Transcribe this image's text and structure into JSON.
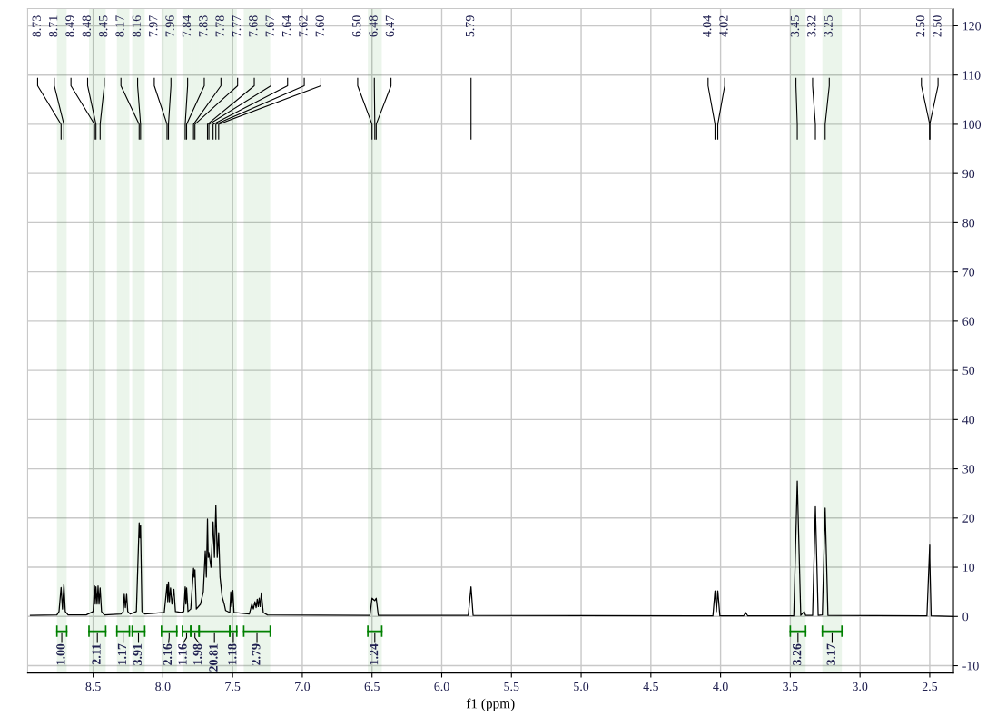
{
  "chart_data": {
    "type": "line",
    "xlabel": "f1 (ppm)",
    "xlim": [
      8.97,
      2.33
    ],
    "ylim": [
      -11.5,
      123.5
    ],
    "xticks": [
      8.5,
      {
        "value": 8,
        "label": "8.0"
      },
      7.5,
      {
        "value": 7,
        "label": "7.0"
      },
      6.5,
      {
        "value": 6,
        "label": "6.0"
      },
      5.5,
      {
        "value": 5,
        "label": "5.0"
      },
      4.5,
      {
        "value": 4,
        "label": "4.0"
      },
      3.5,
      {
        "value": 3,
        "label": "3.0"
      },
      2.5
    ],
    "yticks": [
      -10,
      0,
      10,
      20,
      30,
      40,
      50,
      60,
      70,
      80,
      90,
      100,
      110,
      120
    ],
    "grid": true,
    "series": [
      {
        "color": "#000000",
        "x": [
          8.95,
          8.76,
          8.745,
          8.73,
          8.72,
          8.71,
          8.7,
          8.68,
          8.55,
          8.5,
          8.49,
          8.485,
          8.48,
          8.472,
          8.465,
          8.458,
          8.45,
          8.44,
          8.42,
          8.3,
          8.284,
          8.277,
          8.269,
          8.26,
          8.252,
          8.235,
          8.19,
          8.17,
          8.165,
          8.16,
          8.15,
          8.13,
          7.99,
          7.97,
          7.965,
          7.96,
          7.953,
          7.945,
          7.935,
          7.921,
          7.91,
          7.87,
          7.85,
          7.84,
          7.835,
          7.83,
          7.82,
          7.8,
          7.78,
          7.775,
          7.77,
          7.76,
          7.73,
          7.71,
          7.696,
          7.688,
          7.68,
          7.675,
          7.67,
          7.655,
          7.64,
          7.63,
          7.62,
          7.61,
          7.6,
          7.59,
          7.575,
          7.56,
          7.55,
          7.52,
          7.513,
          7.506,
          7.498,
          7.49,
          7.38,
          7.362,
          7.351,
          7.34,
          7.331,
          7.323,
          7.316,
          7.309,
          7.302,
          7.294,
          7.28,
          7.25,
          6.515,
          6.5,
          6.48,
          6.47,
          6.455,
          5.81,
          5.79,
          5.775,
          4.055,
          4.04,
          4.03,
          4.02,
          4.005,
          3.835,
          3.82,
          3.805,
          3.475,
          3.45,
          3.425,
          3.4,
          3.39,
          3.34,
          3.32,
          3.3,
          3.27,
          3.25,
          3.23,
          2.52,
          2.5,
          2.5,
          2.49,
          2.33
        ],
        "values": [
          0.2,
          0.3,
          1,
          5.9,
          1.5,
          6.5,
          1,
          0.3,
          0.3,
          1,
          6.2,
          2.5,
          6.0,
          2.5,
          6.2,
          2.5,
          5.8,
          1,
          0.3,
          0.5,
          1,
          4.5,
          1.8,
          4.5,
          1,
          0.5,
          1,
          19.0,
          16,
          18.5,
          1,
          0.5,
          0.8,
          6.5,
          3,
          7.0,
          3,
          5.8,
          2.5,
          5.5,
          1,
          0.8,
          1,
          6.0,
          2.5,
          5.8,
          1,
          1.5,
          9.8,
          8,
          9.5,
          1.5,
          2.5,
          5,
          13.3,
          8,
          19.8,
          12,
          13,
          10,
          19.2,
          12,
          22.6,
          12,
          17,
          8,
          4,
          2.5,
          1.2,
          0.8,
          5.0,
          2,
          5.3,
          0.8,
          0.5,
          2.5,
          1.5,
          3.0,
          1.8,
          3.5,
          2,
          3.7,
          2,
          4.8,
          0.8,
          0.3,
          0.2,
          3.7,
          3.2,
          3.7,
          0.2,
          0.2,
          6.0,
          0.2,
          0.1,
          5.2,
          1,
          5.2,
          0.1,
          0.1,
          0.8,
          0.1,
          0.1,
          27.5,
          0.2,
          1.0,
          0.2,
          0.2,
          22.3,
          0.2,
          0.3,
          22.0,
          0.2,
          0.1,
          14.5,
          12,
          0.1,
          0.0
        ]
      }
    ],
    "annotations": [
      "8.73",
      "8.71",
      "8.49",
      "8.48",
      "8.45",
      "8.17",
      "8.16",
      "7.97",
      "7.96",
      "7.84",
      "7.83",
      "7.78",
      "7.77",
      "7.68",
      "7.67",
      "7.64",
      "7.62",
      "7.60",
      "6.50",
      "6.48",
      "6.47",
      "5.79",
      "4.04",
      "4.02",
      "3.45",
      "3.32",
      "3.25",
      "2.50",
      "2.50"
    ],
    "bands": [
      {
        "axis": "x",
        "from": 8.76,
        "to": 8.69,
        "label": "1.00",
        "color": "#008000"
      },
      {
        "axis": "x",
        "from": 8.53,
        "to": 8.41,
        "label": "2.11",
        "color": "#008000"
      },
      {
        "axis": "x",
        "from": 8.33,
        "to": 8.24,
        "label": "1.17",
        "color": "#008000"
      },
      {
        "axis": "x",
        "from": 8.22,
        "to": 8.13,
        "label": "3.91",
        "color": "#008000"
      },
      {
        "axis": "x",
        "from": 8.01,
        "to": 7.9,
        "label": "2.16",
        "color": "#008000"
      },
      {
        "axis": "x",
        "from": 7.86,
        "to": 7.8,
        "label": "1.16",
        "color": "#008000"
      },
      {
        "axis": "x",
        "from": 7.8,
        "to": 7.74,
        "label": "1.98",
        "color": "#008000"
      },
      {
        "axis": "x",
        "from": 7.74,
        "to": 7.52,
        "label": "20.81",
        "color": "#008000"
      },
      {
        "axis": "x",
        "from": 7.52,
        "to": 7.47,
        "label": "1.18",
        "color": "#008000"
      },
      {
        "axis": "x",
        "from": 7.42,
        "to": 7.23,
        "label": "2.79",
        "color": "#008000"
      },
      {
        "axis": "x",
        "from": 6.53,
        "to": 6.43,
        "label": "1.24",
        "color": "#008000"
      },
      {
        "axis": "x",
        "from": 3.5,
        "to": 3.39,
        "label": "3.26",
        "color": "#008000"
      },
      {
        "axis": "x",
        "from": 3.27,
        "to": 3.13,
        "label": "3.17",
        "color": "#008000"
      }
    ]
  }
}
